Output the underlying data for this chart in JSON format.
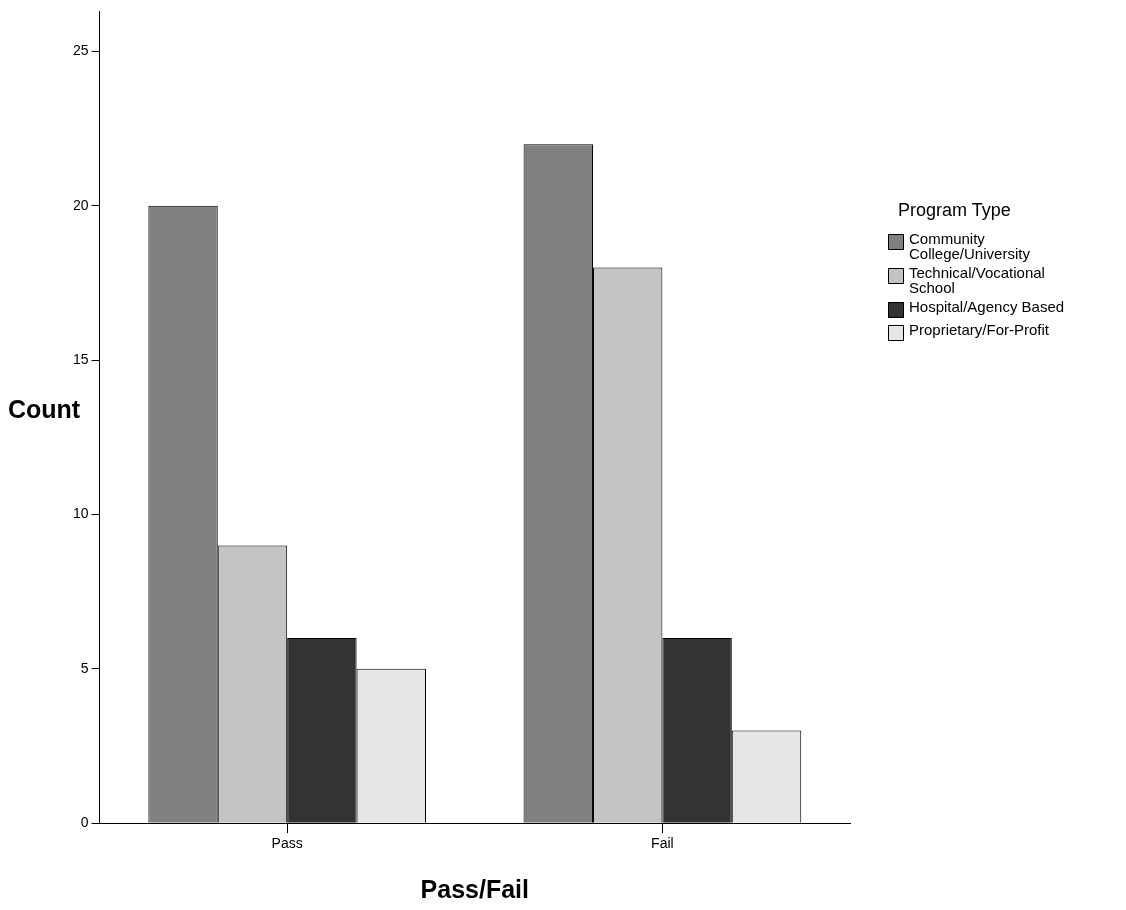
{
  "chart_data": {
    "type": "bar",
    "xlabel": "Pass/Fail",
    "ylabel": "Count",
    "legend_title": "Program Type",
    "categories": [
      "Pass",
      "Fail"
    ],
    "series": [
      {
        "name": "Community College/University",
        "color": "#808080",
        "values": [
          20,
          22
        ]
      },
      {
        "name": "Technical/Vocational School",
        "color": "#c4c4c4",
        "values": [
          9,
          18
        ]
      },
      {
        "name": "Hospital/Agency Based",
        "color": "#333333",
        "values": [
          6,
          6
        ]
      },
      {
        "name": "Proprietary/For-Profit",
        "color": "#e6e6e6",
        "values": [
          5,
          3
        ]
      }
    ],
    "ylim": [
      0,
      26.3
    ],
    "yticks": [
      0,
      5,
      10,
      15,
      20,
      25
    ],
    "grid": false,
    "legend": "right"
  }
}
